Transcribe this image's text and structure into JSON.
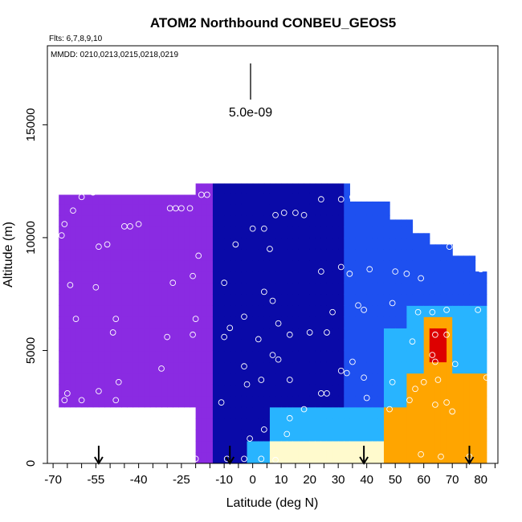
{
  "chart_data": {
    "type": "heatmap",
    "title": "ATOM2 Northbound CONBEU_GEOS5",
    "subtitle_flights": "Flts: 6,7,8,9,10",
    "subtitle_dates": "MMDD: 0210,0213,0215,0218,0219",
    "xlabel": "Latitude (deg N)",
    "ylabel": "Altitude (m)",
    "xlim": [
      -72,
      86
    ],
    "ylim": [
      0,
      18500
    ],
    "x_ticks": [
      -70,
      -55,
      -40,
      -25,
      -10,
      0,
      10,
      20,
      30,
      40,
      50,
      60,
      70,
      80
    ],
    "x_minor_ticks": [
      -70,
      -65,
      -60,
      -55,
      -50,
      -45,
      -40,
      -35,
      -30,
      -25,
      -20,
      -15,
      -10,
      -5,
      0,
      5,
      10,
      15,
      20,
      25,
      30,
      35,
      40,
      45,
      50,
      55,
      60,
      65,
      70,
      75,
      80,
      85
    ],
    "y_ticks": [
      0,
      5000,
      10000,
      15000
    ],
    "scale_label": "5.0e-09",
    "colors": {
      "purple": "#8a2be2",
      "dark_blue": "#0a0aa8",
      "blue": "#1e50f0",
      "light_blue": "#28b4ff",
      "pale_yellow": "#fffacd",
      "orange": "#ffa500",
      "red": "#dd0000"
    },
    "arrow_latitudes": [
      -54,
      -8,
      39,
      76
    ],
    "sample_points": [
      [
        -67,
        10100
      ],
      [
        -66,
        10600
      ],
      [
        -63,
        11200
      ],
      [
        -60,
        11800
      ],
      [
        -56,
        12000
      ],
      [
        -64,
        7900
      ],
      [
        -62,
        6400
      ],
      [
        -55,
        7800
      ],
      [
        -48,
        6400
      ],
      [
        -49,
        5800
      ],
      [
        -47,
        3600
      ],
      [
        -54,
        3200
      ],
      [
        -48,
        2800
      ],
      [
        -65,
        3100
      ],
      [
        -60,
        2800
      ],
      [
        -66,
        2800
      ],
      [
        -54,
        9600
      ],
      [
        -51,
        9700
      ],
      [
        -45,
        10500
      ],
      [
        -43,
        10500
      ],
      [
        -40,
        10600
      ],
      [
        -29,
        11300
      ],
      [
        -27,
        11300
      ],
      [
        -25,
        11300
      ],
      [
        -22,
        11300
      ],
      [
        -18,
        11900
      ],
      [
        -16,
        11900
      ],
      [
        -28,
        8000
      ],
      [
        -21,
        8300
      ],
      [
        -19,
        9200
      ],
      [
        -32,
        4200
      ],
      [
        -20,
        6400
      ],
      [
        -21,
        5700
      ],
      [
        -30,
        5600
      ],
      [
        -10,
        8000
      ],
      [
        -10,
        5600
      ],
      [
        -8,
        6000
      ],
      [
        -6,
        9700
      ],
      [
        0,
        10400
      ],
      [
        4,
        10400
      ],
      [
        8,
        11000
      ],
      [
        11,
        11100
      ],
      [
        15,
        11100
      ],
      [
        18,
        11000
      ],
      [
        24,
        11700
      ],
      [
        31,
        11700
      ],
      [
        35,
        11800
      ],
      [
        6,
        9500
      ],
      [
        4,
        7600
      ],
      [
        7,
        7200
      ],
      [
        -3,
        6500
      ],
      [
        2,
        5500
      ],
      [
        9,
        6200
      ],
      [
        13,
        5700
      ],
      [
        20,
        5800
      ],
      [
        26,
        5800
      ],
      [
        7,
        4800
      ],
      [
        9,
        4600
      ],
      [
        3,
        3700
      ],
      [
        13,
        3700
      ],
      [
        -3,
        4300
      ],
      [
        -2,
        3500
      ],
      [
        -11,
        2700
      ],
      [
        24,
        3100
      ],
      [
        31,
        4100
      ],
      [
        33,
        4000
      ],
      [
        39,
        3800
      ],
      [
        40,
        2900
      ],
      [
        49,
        3600
      ],
      [
        26,
        3100
      ],
      [
        18,
        2400
      ],
      [
        35,
        4500
      ],
      [
        28,
        6700
      ],
      [
        37,
        7000
      ],
      [
        39,
        6800
      ],
      [
        49,
        7100
      ],
      [
        50,
        8500
      ],
      [
        54,
        8400
      ],
      [
        59,
        8200
      ],
      [
        41,
        8600
      ],
      [
        34,
        8400
      ],
      [
        31,
        8700
      ],
      [
        24,
        8500
      ],
      [
        58,
        6700
      ],
      [
        63,
        6700
      ],
      [
        68,
        6800
      ],
      [
        79,
        6800
      ],
      [
        69,
        9600
      ],
      [
        79,
        9600
      ],
      [
        64,
        5700
      ],
      [
        56,
        5400
      ],
      [
        68,
        5700
      ],
      [
        63,
        4800
      ],
      [
        65,
        3700
      ],
      [
        71,
        4400
      ],
      [
        60,
        3600
      ],
      [
        68,
        2700
      ],
      [
        70,
        2300
      ],
      [
        64,
        2600
      ],
      [
        57,
        3300
      ],
      [
        55,
        2800
      ],
      [
        48,
        2400
      ],
      [
        64,
        4500
      ],
      [
        59,
        400
      ],
      [
        76,
        300
      ],
      [
        66,
        300
      ],
      [
        13,
        2000
      ],
      [
        12,
        1300
      ],
      [
        4,
        1500
      ],
      [
        3,
        200
      ],
      [
        -1,
        1100
      ],
      [
        -3,
        200
      ],
      [
        -20,
        200
      ],
      [
        -9,
        200
      ],
      [
        8,
        150
      ],
      [
        80,
        8600
      ],
      [
        82,
        3800
      ]
    ]
  }
}
